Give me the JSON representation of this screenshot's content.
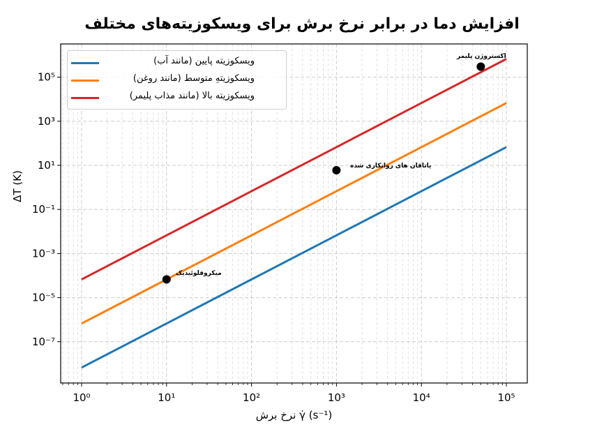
{
  "chart_data": {
    "type": "line",
    "title": "افزایش دما در برابر نرخ برش برای ویسکوزیته‌های مختلف",
    "xlabel": "نرخ برش  γ̇ (s⁻¹)",
    "ylabel": "ΔT (K)",
    "xscale": "log",
    "yscale": "log",
    "xlim": [
      0.6,
      170000
    ],
    "ylim": [
      3e-09,
      1500000.0
    ],
    "grid": true,
    "legend_position": "upper left",
    "x_ticks": [
      "10⁰",
      "10¹",
      "10²",
      "10³",
      "10⁴",
      "10⁵"
    ],
    "y_ticks": [
      "10⁻⁷",
      "10⁻⁵",
      "10⁻³",
      "10⁻¹",
      "10¹",
      "10³",
      "10⁵"
    ],
    "x": [
      1,
      10,
      100,
      1000,
      10000,
      100000
    ],
    "series": [
      {
        "name": "ویسکوزیته پایین (مانند آب)",
        "color": "#1f77b4",
        "values": [
          6.7e-09,
          6.7e-07,
          6.7e-05,
          0.0067,
          0.67,
          67
        ]
      },
      {
        "name": "ویسکوزیتهِ متوسط (مانند روغن)",
        "color": "#ff7f0e",
        "values": [
          6.7e-07,
          6.7e-05,
          0.0067,
          0.67,
          67,
          6700
        ]
      },
      {
        "name": "ویسکوزیته بالا (مانند مذاب پلیمر)",
        "color": "#d62728",
        "values": [
          6.7e-05,
          0.0067,
          0.67,
          67,
          6700,
          670000
        ]
      }
    ],
    "annotations": [
      {
        "label": "میکروفلوئیدیک",
        "x": 10,
        "y": 6.7e-05
      },
      {
        "label": "یاتاقان های روانکاری شده",
        "x": 1000,
        "y": 6.0
      },
      {
        "label": "اکستروژن پلیمر",
        "x": 50000,
        "y": 300000
      }
    ]
  },
  "labels": {
    "title": "افزایش دما در برابر نرخ برش برای ویسکوزیته‌های مختلف",
    "xlabel": "نرخ برش  γ̇ (s⁻¹)",
    "ylabel": "ΔT (K)",
    "legend": [
      "ویسکوزیته پایین (مانند آب)",
      "ویسکوزیتهِ متوسط (مانند روغن)",
      "ویسکوزیته بالا (مانند مذاب پلیمر)"
    ],
    "annotations": [
      "میکروفلوئیدیک",
      "یاتاقان های روانکاری شده",
      "اکستروژن پلیمر"
    ]
  }
}
